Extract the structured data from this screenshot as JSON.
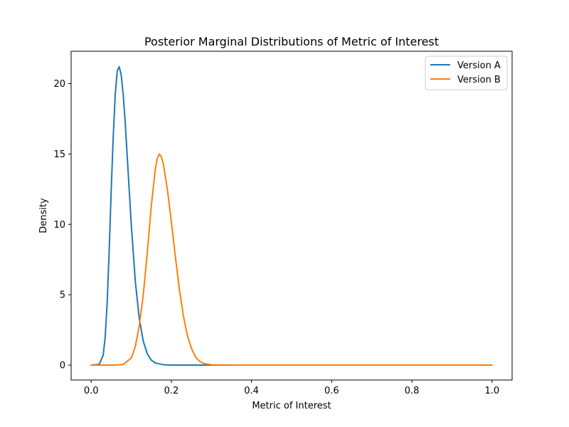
{
  "chart_data": {
    "type": "line",
    "title": "Posterior Marginal Distributions of Metric of Interest",
    "xlabel": "Metric of Interest",
    "ylabel": "Density",
    "xlim": [
      -0.05,
      1.05
    ],
    "ylim": [
      -1.06,
      22.3
    ],
    "xticks": [
      0.0,
      0.2,
      0.4,
      0.6,
      0.8,
      1.0
    ],
    "xtick_labels": [
      "0.0",
      "0.2",
      "0.4",
      "0.6",
      "0.8",
      "1.0"
    ],
    "yticks": [
      0,
      5,
      10,
      15,
      20
    ],
    "ytick_labels": [
      "0",
      "5",
      "10",
      "15",
      "20"
    ],
    "grid": false,
    "legend_position": "top-right",
    "series": [
      {
        "name": "Version A",
        "color": "#1f77b4",
        "x": [
          0.0,
          0.02,
          0.03,
          0.035,
          0.04,
          0.045,
          0.05,
          0.055,
          0.06,
          0.065,
          0.07,
          0.075,
          0.08,
          0.085,
          0.09,
          0.095,
          0.1,
          0.11,
          0.12,
          0.13,
          0.14,
          0.15,
          0.16,
          0.18,
          0.2,
          0.25,
          0.3,
          1.0
        ],
        "y": [
          0.0,
          0.05,
          0.7,
          2.0,
          4.5,
          8.2,
          12.4,
          16.2,
          19.2,
          20.9,
          21.2,
          20.6,
          19.2,
          17.2,
          14.8,
          12.4,
          10.0,
          6.0,
          3.3,
          1.7,
          0.8,
          0.35,
          0.15,
          0.03,
          0.0,
          0.0,
          0.0,
          0.0
        ]
      },
      {
        "name": "Version B",
        "color": "#ff7f0e",
        "x": [
          0.0,
          0.06,
          0.08,
          0.1,
          0.11,
          0.12,
          0.13,
          0.14,
          0.15,
          0.16,
          0.165,
          0.17,
          0.175,
          0.18,
          0.19,
          0.2,
          0.21,
          0.22,
          0.23,
          0.24,
          0.25,
          0.26,
          0.27,
          0.28,
          0.3,
          0.35,
          0.4,
          1.0
        ],
        "y": [
          0.0,
          0.0,
          0.05,
          0.5,
          1.3,
          2.8,
          5.0,
          8.0,
          11.3,
          13.9,
          14.7,
          15.0,
          14.8,
          14.3,
          12.5,
          10.2,
          7.7,
          5.4,
          3.5,
          2.1,
          1.2,
          0.6,
          0.28,
          0.12,
          0.02,
          0.0,
          0.0,
          0.0
        ]
      }
    ]
  }
}
